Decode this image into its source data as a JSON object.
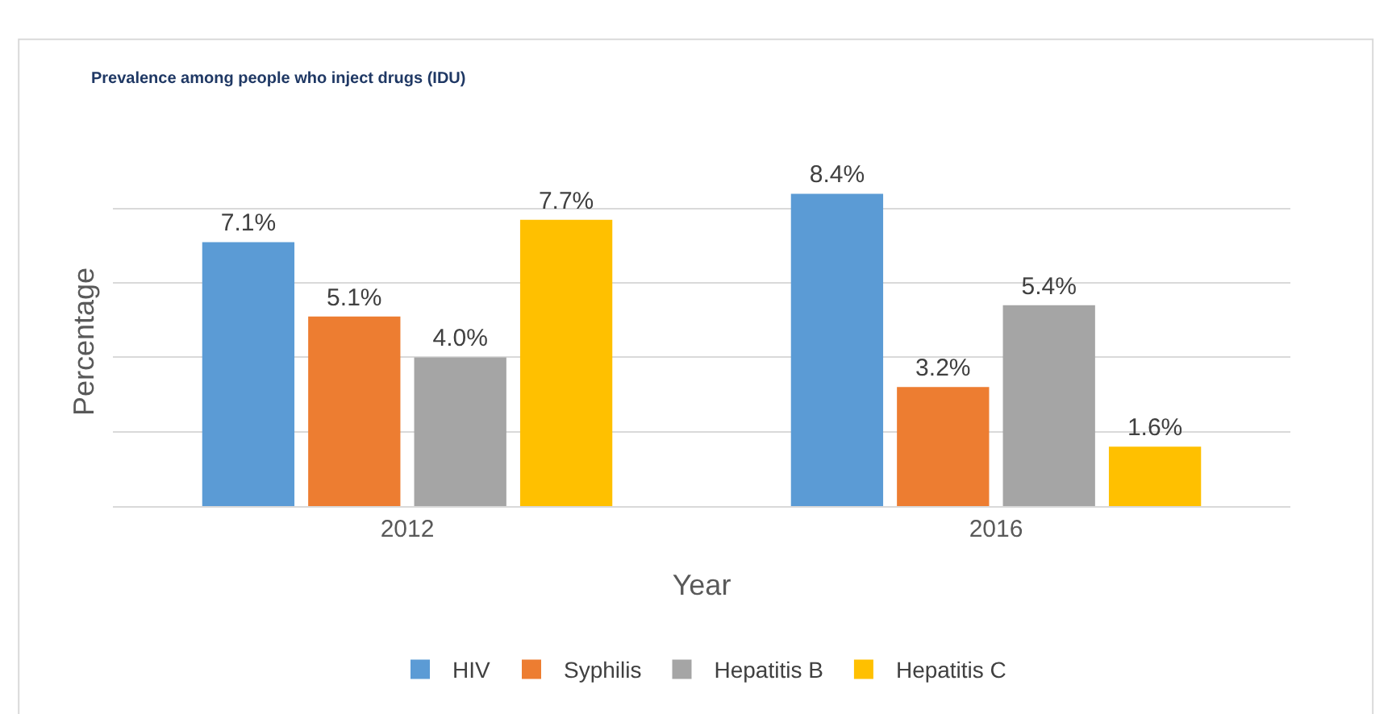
{
  "chart_data": {
    "type": "bar",
    "title": "Prevalence among people who inject drugs (IDU)",
    "xlabel": "Year",
    "ylabel": "Percentage",
    "categories": [
      "2012",
      "2016"
    ],
    "series": [
      {
        "name": "HIV",
        "color": "#5b9bd5",
        "values": [
          7.1,
          8.4
        ],
        "value_labels": [
          "7.1%",
          "8.4%"
        ]
      },
      {
        "name": "Syphilis",
        "color": "#ed7d31",
        "values": [
          5.1,
          3.2
        ],
        "value_labels": [
          "5.1%",
          "3.2%"
        ]
      },
      {
        "name": "Hepatitis B",
        "color": "#a5a5a5",
        "values": [
          4.0,
          5.4
        ],
        "value_labels": [
          "4.0%",
          "5.4%"
        ]
      },
      {
        "name": "Hepatitis C",
        "color": "#ffc000",
        "values": [
          7.7,
          1.6
        ],
        "value_labels": [
          "7.7%",
          "1.6%"
        ]
      }
    ],
    "grid": "y",
    "legend": "bottom",
    "tick_labels": "x"
  }
}
